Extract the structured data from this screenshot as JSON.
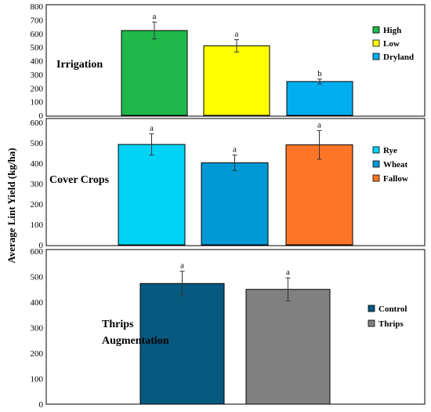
{
  "figure": {
    "ylabel": "Average Lint Yield (kg/ha)"
  },
  "chart_data": [
    {
      "type": "bar",
      "panel_label": [
        "Irrigation"
      ],
      "categories": [
        "High",
        "Low",
        "Dryland"
      ],
      "values": [
        622,
        510,
        248
      ],
      "errors": [
        62,
        45,
        18
      ],
      "significance": [
        "a",
        "a",
        "b"
      ],
      "colors": [
        "#1fb84a",
        "#ffff00",
        "#00aeef"
      ],
      "ylim": [
        0,
        800
      ],
      "yticks": [
        0,
        100,
        200,
        300,
        400,
        500,
        600,
        700,
        800
      ],
      "legend_position": "right"
    },
    {
      "type": "bar",
      "panel_label": [
        "Cover Crops"
      ],
      "categories": [
        "Rye",
        "Wheat",
        "Fallow"
      ],
      "values": [
        492,
        402,
        490
      ],
      "errors": [
        52,
        38,
        70
      ],
      "significance": [
        "a",
        "a",
        "a"
      ],
      "colors": [
        "#00d2f5",
        "#0099d5",
        "#ff7527"
      ],
      "ylim": [
        0,
        600
      ],
      "yticks": [
        0,
        100,
        200,
        300,
        400,
        500,
        600
      ],
      "legend_position": "right"
    },
    {
      "type": "bar",
      "panel_label": [
        "Thrips",
        "Augmentation"
      ],
      "categories": [
        "Control",
        "Thrips"
      ],
      "values": [
        473,
        450
      ],
      "errors": [
        48,
        45
      ],
      "significance": [
        "a",
        "a"
      ],
      "colors": [
        "#065a80",
        "#808080"
      ],
      "ylim": [
        0,
        600
      ],
      "yticks": [
        0,
        100,
        200,
        300,
        400,
        500,
        600
      ],
      "legend_position": "right"
    }
  ]
}
